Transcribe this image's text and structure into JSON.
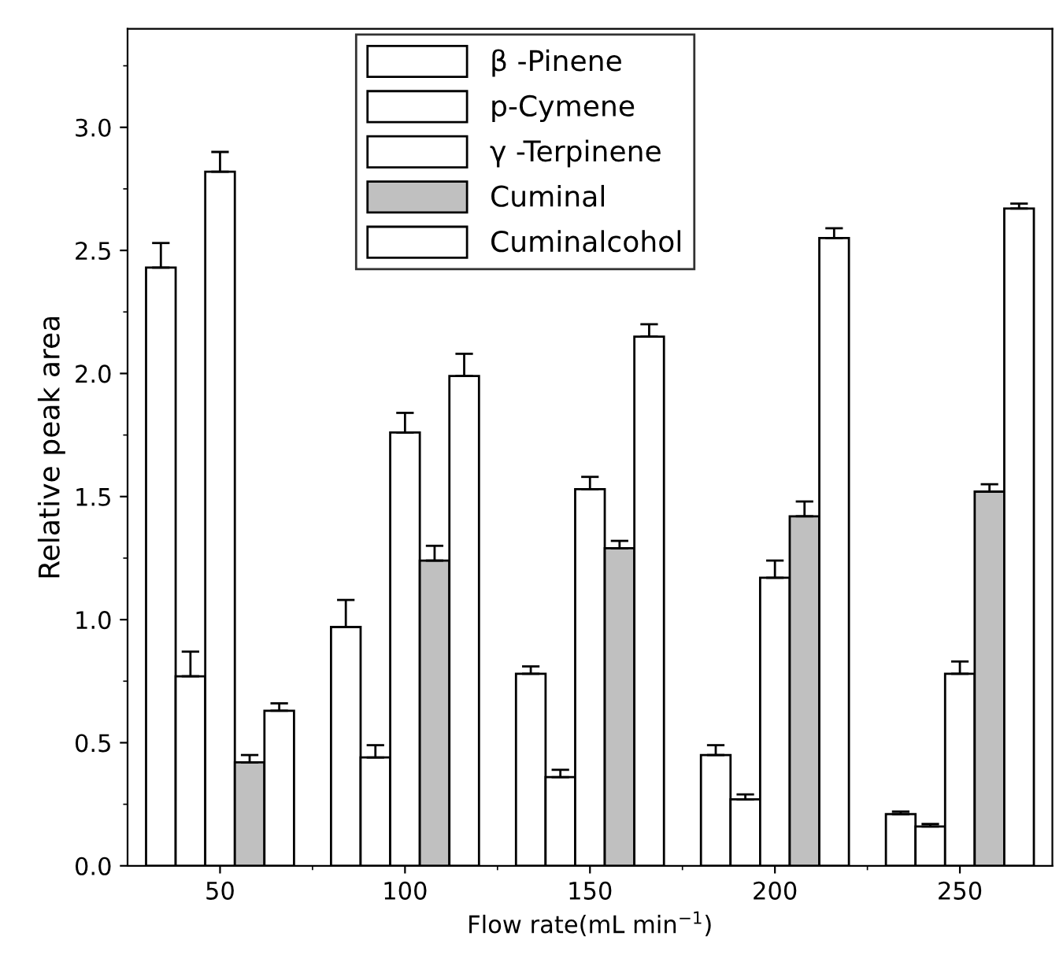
{
  "chart_data": {
    "type": "bar",
    "xlabel": "Flow rate(mL min$^{−1}$)",
    "ylabel": "Relative peak area",
    "categories": [
      "50",
      "100",
      "150",
      "200",
      "250"
    ],
    "ylim": [
      0,
      3.4
    ],
    "yticks": [
      {
        "value": 0,
        "label": "0.0"
      },
      0.5,
      {
        "value": 1,
        "label": "1.0"
      },
      1.5,
      {
        "value": 2,
        "label": "2.0"
      },
      2.5,
      {
        "value": 3,
        "label": "3.0"
      }
    ],
    "legend": "top",
    "grid": false,
    "series": [
      {
        "name": "β -Pinene",
        "color": "#ffffff",
        "values": [
          2.43,
          0.97,
          0.78,
          0.45,
          0.21
        ],
        "errors": [
          [
            2.43,
            2.53
          ],
          [
            0.97,
            1.08
          ],
          [
            0.78,
            0.81
          ],
          [
            0.45,
            0.49
          ],
          [
            0.21,
            0.22
          ]
        ]
      },
      {
        "name": "p-Cymene",
        "color": "#ffffff",
        "values": [
          0.77,
          0.44,
          0.36,
          0.27,
          0.16
        ],
        "errors": [
          [
            0.77,
            0.87
          ],
          [
            0.44,
            0.49
          ],
          [
            0.36,
            0.39
          ],
          [
            0.27,
            0.29
          ],
          [
            0.16,
            0.17
          ]
        ]
      },
      {
        "name": "γ -Terpinene",
        "color": "#ffffff",
        "values": [
          2.82,
          1.76,
          1.53,
          1.17,
          0.78
        ],
        "errors": [
          [
            2.82,
            2.9
          ],
          [
            1.76,
            1.84
          ],
          [
            1.53,
            1.58
          ],
          [
            1.17,
            1.24
          ],
          [
            0.78,
            0.83
          ]
        ]
      },
      {
        "name": "Cuminal",
        "color": "#c0c0c0",
        "values": [
          0.42,
          1.24,
          1.29,
          1.42,
          1.52
        ],
        "errors": [
          [
            0.42,
            0.45
          ],
          [
            1.24,
            1.3
          ],
          [
            1.29,
            1.32
          ],
          [
            1.42,
            1.48
          ],
          [
            1.52,
            1.55
          ]
        ]
      },
      {
        "name": "Cuminalcohol",
        "color": "#ffffff",
        "values": [
          0.63,
          1.99,
          2.15,
          2.55,
          2.67
        ],
        "errors": [
          [
            0.63,
            0.66
          ],
          [
            1.99,
            2.08
          ],
          [
            2.15,
            2.2
          ],
          [
            2.55,
            2.59
          ],
          [
            2.67,
            2.69
          ]
        ]
      }
    ]
  }
}
